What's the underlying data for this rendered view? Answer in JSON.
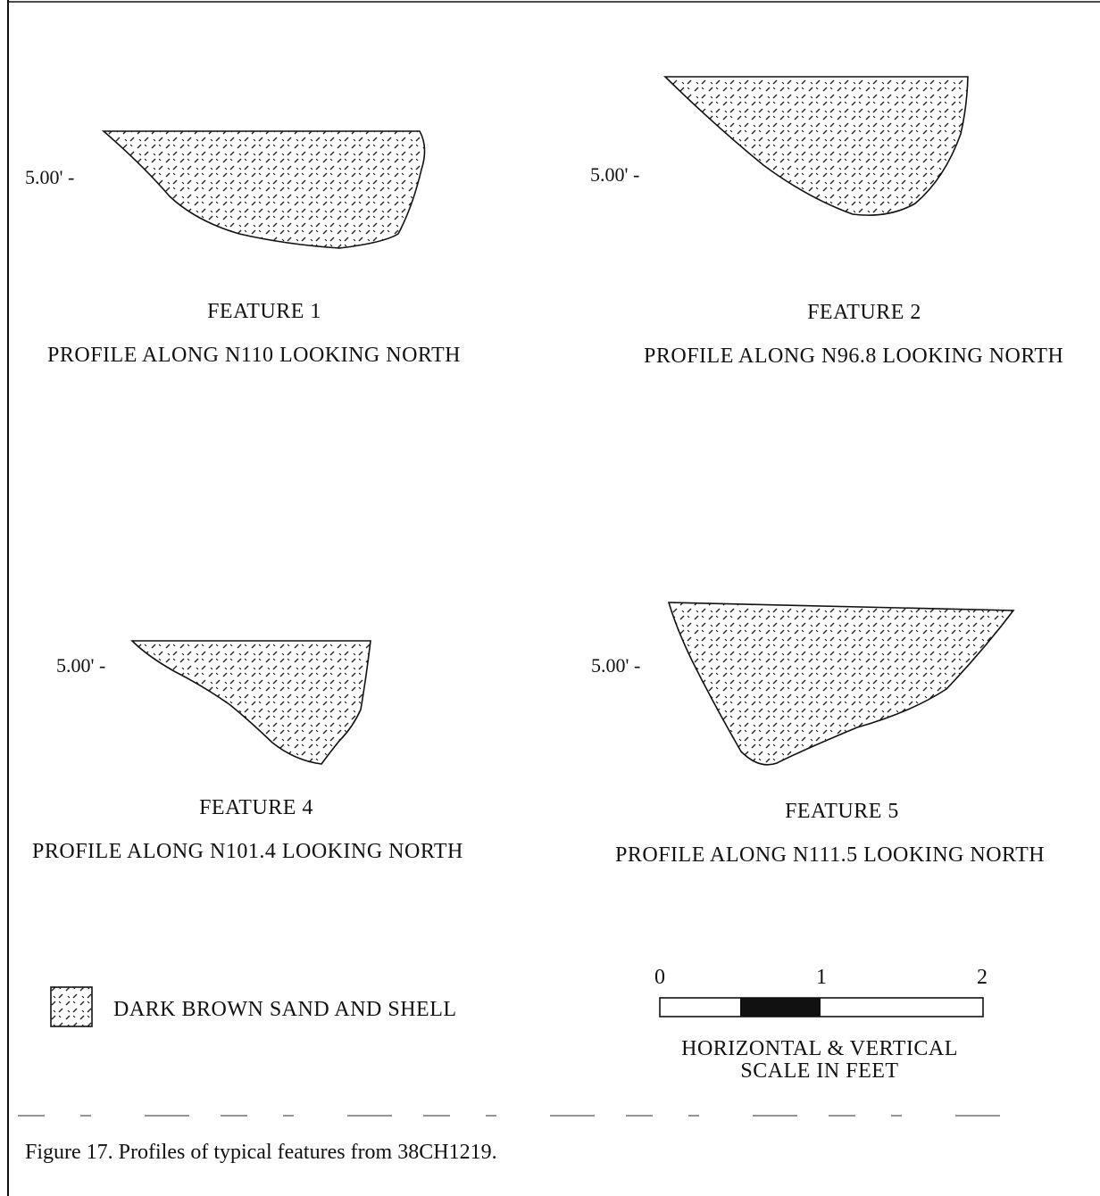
{
  "panels": [
    {
      "feature": "FEATURE 1",
      "profile": "PROFILE ALONG N110 LOOKING NORTH",
      "depth_label": "5.00' -"
    },
    {
      "feature": "FEATURE 2",
      "profile": "PROFILE ALONG N96.8 LOOKING NORTH",
      "depth_label": "5.00' -"
    },
    {
      "feature": "FEATURE 4",
      "profile": "PROFILE ALONG N101.4 LOOKING NORTH",
      "depth_label": "5.00' -"
    },
    {
      "feature": "FEATURE 5",
      "profile": "PROFILE ALONG N111.5 LOOKING NORTH",
      "depth_label": "5.00' -"
    }
  ],
  "legend": {
    "label": "DARK BROWN SAND AND SHELL"
  },
  "scale": {
    "ticks": [
      "0",
      "1",
      "2"
    ],
    "title_line1": "HORIZONTAL & VERTICAL",
    "title_line2": "SCALE IN FEET"
  },
  "caption": "Figure 17. Profiles of typical features from 38CH1219."
}
